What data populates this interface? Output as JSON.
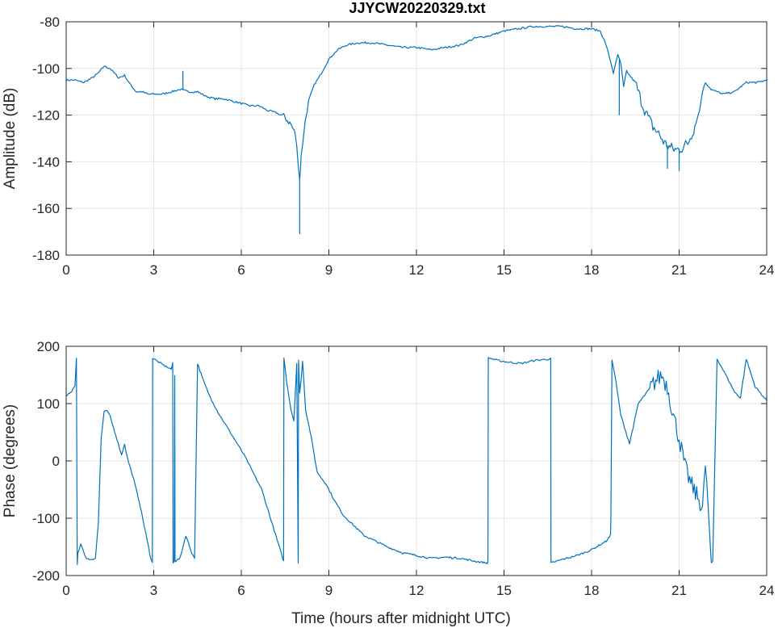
{
  "figure": {
    "title": "JJYCW20220329.txt",
    "xlabel": "Time (hours after midnight UTC)"
  },
  "chart_data": [
    {
      "type": "line",
      "title": "JJYCW20220329.txt",
      "xlabel": "",
      "ylabel": "Amplitude (dB)",
      "xlim": [
        0,
        24
      ],
      "ylim": [
        -180,
        -80
      ],
      "xticks": [
        0,
        3,
        6,
        9,
        12,
        15,
        18,
        21,
        24
      ],
      "yticks": [
        -80,
        -100,
        -120,
        -140,
        -160,
        -180
      ],
      "grid": true,
      "color": "#0072BD",
      "x": [
        0,
        0.3,
        0.6,
        0.9,
        1.1,
        1.3,
        1.5,
        1.8,
        2.0,
        2.2,
        2.4,
        2.6,
        2.8,
        3.0,
        3.3,
        3.6,
        3.9,
        4.2,
        4.5,
        4.8,
        5.1,
        5.4,
        5.7,
        6.0,
        6.3,
        6.6,
        6.9,
        7.2,
        7.5,
        7.7,
        7.85,
        7.95,
        8.0,
        8.05,
        8.15,
        8.3,
        8.5,
        8.7,
        9.0,
        9.3,
        9.6,
        10.0,
        10.5,
        11.0,
        11.5,
        12.0,
        12.5,
        13.0,
        13.5,
        14.0,
        14.5,
        15.0,
        15.5,
        16.0,
        16.5,
        17.0,
        17.5,
        18.0,
        18.3,
        18.5,
        18.65,
        18.75,
        18.9,
        19.0,
        19.1,
        19.2,
        19.3,
        19.5,
        19.7,
        19.9,
        20.1,
        20.3,
        20.5,
        20.7,
        20.9,
        21.1,
        21.3,
        21.5,
        21.7,
        21.8,
        21.9,
        22.1,
        22.5,
        22.9,
        23.3,
        23.7,
        24.0
      ],
      "values": [
        -105,
        -105,
        -106,
        -104,
        -102,
        -99,
        -100,
        -104,
        -103,
        -107,
        -110,
        -110,
        -111,
        -111,
        -111,
        -110,
        -109,
        -110,
        -110,
        -112,
        -113,
        -113,
        -114,
        -115,
        -116,
        -116,
        -118,
        -119,
        -121,
        -124,
        -128,
        -140,
        -148,
        -138,
        -126,
        -114,
        -107,
        -103,
        -96,
        -92,
        -90,
        -89,
        -89,
        -90,
        -91,
        -91,
        -92,
        -91,
        -90,
        -87,
        -86,
        -84,
        -83,
        -82,
        -82,
        -82,
        -83,
        -83,
        -84,
        -90,
        -97,
        -102,
        -94,
        -98,
        -108,
        -101,
        -103,
        -106,
        -114,
        -120,
        -125,
        -128,
        -132,
        -134,
        -135,
        -134,
        -132,
        -126,
        -118,
        -110,
        -106,
        -109,
        -111,
        -110,
        -106,
        -106,
        -105
      ],
      "annotations": [
        {
          "x": 8.0,
          "y": -171
        },
        {
          "x": 4.0,
          "y": -101
        },
        {
          "x": 20.6,
          "y": -143
        },
        {
          "x": 21.0,
          "y": -144
        },
        {
          "x": 18.95,
          "y": -120
        }
      ]
    },
    {
      "type": "line",
      "title": "",
      "xlabel": "Time (hours after midnight UTC)",
      "ylabel": "Phase (degrees)",
      "xlim": [
        0,
        24
      ],
      "ylim": [
        -200,
        200
      ],
      "xticks": [
        0,
        3,
        6,
        9,
        12,
        15,
        18,
        21,
        24
      ],
      "yticks": [
        200,
        100,
        0,
        -100,
        -200
      ],
      "grid": true,
      "color": "#0072BD",
      "x": [
        0,
        0.15,
        0.3,
        0.35,
        0.38,
        0.4,
        0.5,
        0.6,
        0.7,
        0.8,
        1.0,
        1.1,
        1.2,
        1.3,
        1.4,
        1.5,
        1.7,
        1.9,
        2.0,
        2.1,
        2.3,
        2.5,
        2.7,
        2.9,
        2.95,
        2.96,
        3.0,
        3.3,
        3.6,
        3.65,
        3.66,
        3.7,
        3.72,
        3.73,
        3.9,
        4.1,
        4.3,
        4.4,
        4.5,
        4.7,
        4.9,
        5.2,
        5.5,
        5.8,
        6.1,
        6.4,
        6.7,
        7.0,
        7.3,
        7.45,
        7.46,
        7.55,
        7.7,
        7.8,
        7.9,
        7.95,
        7.96,
        8.0,
        8.05,
        8.1,
        8.2,
        8.4,
        8.6,
        8.9,
        9.2,
        9.5,
        9.8,
        10.2,
        10.6,
        11.0,
        11.5,
        12.0,
        12.5,
        13.0,
        13.5,
        14.0,
        14.4,
        14.45,
        14.46,
        14.6,
        14.8,
        15.2,
        15.6,
        16.0,
        16.6,
        16.61,
        16.62,
        17.0,
        17.5,
        18.0,
        18.5,
        18.65,
        18.66,
        18.7,
        18.8,
        19.0,
        19.3,
        19.6,
        19.9,
        20.2,
        20.4,
        20.6,
        20.8,
        21.0,
        21.2,
        21.4,
        21.6,
        21.8,
        21.9,
        21.95,
        22.1,
        22.15,
        22.3,
        22.6,
        22.9,
        23.1,
        23.3,
        23.6,
        24.0
      ],
      "values": [
        115,
        118,
        130,
        180,
        -180,
        -160,
        -145,
        -160,
        -170,
        -172,
        -170,
        -110,
        40,
        85,
        88,
        78,
        45,
        10,
        30,
        5,
        -30,
        -70,
        -120,
        -170,
        -178,
        180,
        178,
        168,
        160,
        170,
        -178,
        -175,
        150,
        -175,
        -170,
        -130,
        -160,
        -170,
        170,
        140,
        115,
        85,
        60,
        35,
        10,
        -20,
        -50,
        -100,
        -150,
        -175,
        180,
        140,
        90,
        70,
        170,
        -178,
        175,
        120,
        140,
        175,
        90,
        40,
        -20,
        -40,
        -70,
        -95,
        -110,
        -130,
        -140,
        -150,
        -160,
        -165,
        -170,
        -168,
        -170,
        -175,
        -178,
        -178,
        180,
        178,
        175,
        172,
        170,
        175,
        178,
        -178,
        -178,
        -172,
        -165,
        -155,
        -140,
        -130,
        -105,
        175,
        150,
        80,
        30,
        100,
        120,
        140,
        150,
        130,
        80,
        40,
        -10,
        -40,
        -60,
        -80,
        -10,
        -40,
        -178,
        -175,
        178,
        150,
        120,
        110,
        178,
        130,
        105
      ],
      "annotations": []
    }
  ]
}
